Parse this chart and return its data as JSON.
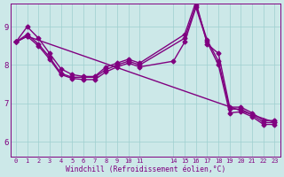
{
  "xlabel": "Windchill (Refroidissement éolien,°C)",
  "background_color": "#cce8e8",
  "line_color": "#800080",
  "marker": "D",
  "markersize": 2.5,
  "linewidth": 1.0,
  "xlim": [
    -0.5,
    23.5
  ],
  "ylim": [
    5.6,
    9.6
  ],
  "x_ticks": [
    0,
    1,
    2,
    3,
    4,
    5,
    6,
    7,
    8,
    9,
    10,
    11,
    14,
    15,
    16,
    17,
    18,
    19,
    20,
    21,
    22,
    23
  ],
  "y_ticks": [
    6,
    7,
    8,
    9
  ],
  "series": [
    {
      "x": [
        0,
        1,
        2,
        3,
        4,
        5,
        6,
        7,
        8,
        9,
        10,
        11,
        15,
        16,
        17,
        18,
        19,
        20,
        21,
        22,
        23
      ],
      "y": [
        8.6,
        9.0,
        8.7,
        8.3,
        7.9,
        7.75,
        7.7,
        7.7,
        7.95,
        8.05,
        8.15,
        8.05,
        8.8,
        9.65,
        8.55,
        8.3,
        6.9,
        6.9,
        6.75,
        6.55,
        6.55
      ]
    },
    {
      "x": [
        0,
        1,
        2,
        3,
        4,
        5,
        6,
        7,
        8,
        9,
        10,
        11,
        15,
        16,
        17,
        18,
        19,
        20,
        21,
        22,
        23
      ],
      "y": [
        8.6,
        8.8,
        8.55,
        8.2,
        7.78,
        7.68,
        7.68,
        7.68,
        7.88,
        8.0,
        8.1,
        8.0,
        8.7,
        9.55,
        8.65,
        8.1,
        6.85,
        6.85,
        6.7,
        6.5,
        6.5
      ]
    },
    {
      "x": [
        0,
        1,
        23
      ],
      "y": [
        8.6,
        8.75,
        6.5
      ]
    },
    {
      "x": [
        0,
        1,
        2,
        3,
        4,
        5,
        6,
        7,
        8,
        9,
        10,
        11,
        14,
        15,
        16,
        17,
        18,
        19,
        20,
        21,
        22,
        23
      ],
      "y": [
        8.6,
        8.75,
        8.5,
        8.15,
        7.75,
        7.65,
        7.62,
        7.62,
        7.82,
        7.95,
        8.05,
        7.95,
        8.1,
        8.6,
        9.5,
        8.6,
        8.0,
        6.75,
        6.78,
        6.65,
        6.45,
        6.45
      ]
    }
  ]
}
